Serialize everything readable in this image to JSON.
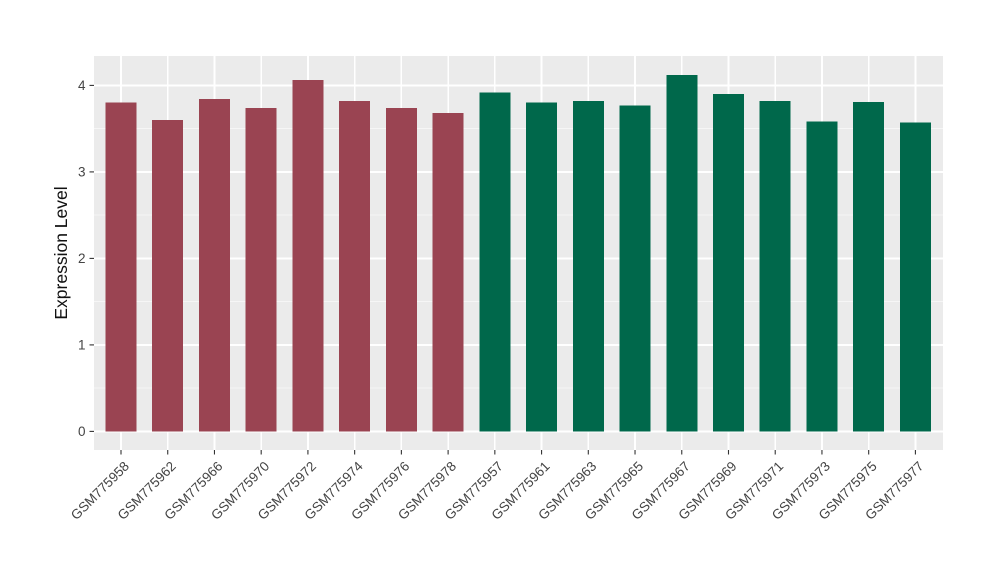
{
  "chart_data": {
    "type": "bar",
    "title": "",
    "xlabel": "",
    "ylabel": "Expression Level",
    "ylim": [
      -0.215,
      4.34
    ],
    "yticks": [
      0,
      1,
      2,
      3,
      4
    ],
    "minor_yticks": [
      0.5,
      1.5,
      2.5,
      3.5
    ],
    "grid": "on",
    "legend": "none",
    "categories": [
      "GSM775958",
      "GSM775962",
      "GSM775966",
      "GSM775970",
      "GSM775972",
      "GSM775974",
      "GSM775976",
      "GSM775978",
      "GSM775957",
      "GSM775961",
      "GSM775963",
      "GSM775965",
      "GSM775967",
      "GSM775969",
      "GSM775971",
      "GSM775973",
      "GSM775975",
      "GSM775977"
    ],
    "values": [
      3.8,
      3.6,
      3.84,
      3.74,
      4.06,
      3.82,
      3.74,
      3.68,
      3.92,
      3.8,
      3.82,
      3.77,
      4.12,
      3.9,
      3.82,
      3.58,
      3.81,
      3.57
    ],
    "bar_groups": [
      "maroon",
      "maroon",
      "maroon",
      "maroon",
      "maroon",
      "maroon",
      "maroon",
      "maroon",
      "green",
      "green",
      "green",
      "green",
      "green",
      "green",
      "green",
      "green",
      "green",
      "green"
    ],
    "series": [
      {
        "name": "maroon-group",
        "color": "#9A4452",
        "categories": [
          "GSM775958",
          "GSM775962",
          "GSM775966",
          "GSM775970",
          "GSM775972",
          "GSM775974",
          "GSM775976",
          "GSM775978"
        ],
        "values": [
          3.8,
          3.6,
          3.84,
          3.74,
          4.06,
          3.82,
          3.74,
          3.68
        ]
      },
      {
        "name": "green-group",
        "color": "#00684B",
        "categories": [
          "GSM775957",
          "GSM775961",
          "GSM775963",
          "GSM775965",
          "GSM775967",
          "GSM775969",
          "GSM775971",
          "GSM775973",
          "GSM775975",
          "GSM775977"
        ],
        "values": [
          3.92,
          3.8,
          3.82,
          3.77,
          4.12,
          3.9,
          3.82,
          3.58,
          3.81,
          3.57
        ]
      }
    ],
    "colors": {
      "maroon": "#9A4452",
      "green": "#00684B",
      "panel_background": "#EBEBEB",
      "grid_major": "#FFFFFF",
      "grid_minor": "#F6F6F6",
      "axis_text": "#444444",
      "axis_title": "#111111",
      "tick_mark": "#333333",
      "figure_background": "#FFFFFF"
    }
  }
}
